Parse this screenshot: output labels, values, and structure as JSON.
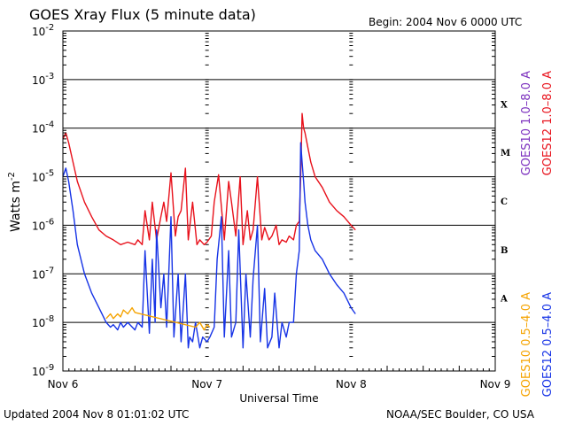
{
  "header": {
    "title": "GOES Xray Flux (5 minute data)",
    "begin": "Begin:  2004 Nov 6 0000 UTC"
  },
  "footer": {
    "updated": "Updated 2004 Nov  8 01:01:02 UTC",
    "credit": "NOAA/SEC Boulder, CO USA"
  },
  "colors": {
    "goes10_long": "#7b2fbe",
    "goes12_long": "#e8111b",
    "goes10_short": "#f5a300",
    "goes12_short": "#1633e6"
  },
  "chart_data": {
    "type": "line",
    "y_scale": "log",
    "ylim": [
      1e-09,
      0.01
    ],
    "xlim_days": [
      0,
      3
    ],
    "grid": true,
    "xlabel": "Universal Time",
    "ylabel": "Watts m",
    "ylabel_sup": "-2",
    "x_ticks": [
      {
        "day": 0,
        "label": "Nov 6"
      },
      {
        "day": 1,
        "label": "Nov 7"
      },
      {
        "day": 2,
        "label": "Nov 8"
      },
      {
        "day": 3,
        "label": "Nov 9"
      }
    ],
    "y_ticks": [
      {
        "exp": -9,
        "base": "10",
        "sup": "-9"
      },
      {
        "exp": -8,
        "base": "10",
        "sup": "-8"
      },
      {
        "exp": -7,
        "base": "10",
        "sup": "-7"
      },
      {
        "exp": -6,
        "base": "10",
        "sup": "-6"
      },
      {
        "exp": -5,
        "base": "10",
        "sup": "-5"
      },
      {
        "exp": -4,
        "base": "10",
        "sup": "-4"
      },
      {
        "exp": -3,
        "base": "10",
        "sup": "-3"
      },
      {
        "exp": -2,
        "base": "10",
        "sup": "-2"
      }
    ],
    "flare_classes": [
      {
        "label": "A",
        "exp": -7.5
      },
      {
        "label": "B",
        "exp": -6.5
      },
      {
        "label": "C",
        "exp": -5.5
      },
      {
        "label": "M",
        "exp": -4.5
      },
      {
        "label": "X",
        "exp": -3.5
      }
    ],
    "legend": [
      {
        "label": "GOES10 1.0–8.0 A",
        "color_key": "goes10_long"
      },
      {
        "label": "GOES12 1.0–8.0 A",
        "color_key": "goes12_long"
      },
      {
        "label": "GOES10 0.5–4.0 A",
        "color_key": "goes10_short"
      },
      {
        "label": "GOES12 0.5–4.0 A",
        "color_key": "goes12_short"
      }
    ],
    "series": [
      {
        "name": "GOES12 1.0–8.0 A",
        "color_key": "goes12_long",
        "x": [
          0.0,
          0.02,
          0.04,
          0.07,
          0.1,
          0.15,
          0.2,
          0.25,
          0.3,
          0.35,
          0.4,
          0.45,
          0.5,
          0.52,
          0.55,
          0.57,
          0.6,
          0.62,
          0.65,
          0.68,
          0.7,
          0.72,
          0.75,
          0.78,
          0.8,
          0.82,
          0.85,
          0.87,
          0.9,
          0.93,
          0.95,
          0.98,
          1.0,
          1.03,
          1.05,
          1.08,
          1.12,
          1.15,
          1.17,
          1.2,
          1.23,
          1.25,
          1.28,
          1.3,
          1.32,
          1.35,
          1.38,
          1.4,
          1.43,
          1.45,
          1.48,
          1.5,
          1.52,
          1.55,
          1.57,
          1.6,
          1.62,
          1.64,
          1.65,
          1.66,
          1.67,
          1.68,
          1.7,
          1.72,
          1.75,
          1.8,
          1.85,
          1.9,
          1.95,
          2.0,
          2.03
        ],
        "y": [
          6e-05,
          8e-05,
          5e-05,
          2e-05,
          8e-06,
          3e-06,
          1.5e-06,
          8e-07,
          6e-07,
          5e-07,
          4e-07,
          4.5e-07,
          4e-07,
          5e-07,
          4e-07,
          2e-06,
          5e-07,
          3e-06,
          5e-07,
          1.5e-06,
          3e-06,
          1.2e-06,
          1.2e-05,
          6e-07,
          1.5e-06,
          2e-06,
          1.5e-05,
          5e-07,
          3e-06,
          4e-07,
          5e-07,
          4e-07,
          4.5e-07,
          6e-07,
          3e-06,
          1.1e-05,
          5e-07,
          8e-06,
          3e-06,
          6e-07,
          1e-05,
          4e-07,
          2e-06,
          5e-07,
          8e-07,
          1e-05,
          5e-07,
          9e-07,
          5e-07,
          6e-07,
          1e-06,
          4e-07,
          5e-07,
          4.5e-07,
          6e-07,
          5e-07,
          1e-06,
          1.2e-06,
          1e-05,
          0.0002,
          0.0001,
          8e-05,
          4e-05,
          2e-05,
          1e-05,
          6e-06,
          3e-06,
          2e-06,
          1.5e-06,
          1e-06,
          8e-07
        ]
      },
      {
        "name": "GOES12 0.5–4.0 A",
        "color_key": "goes12_short",
        "x": [
          0.0,
          0.02,
          0.04,
          0.07,
          0.1,
          0.15,
          0.2,
          0.25,
          0.3,
          0.33,
          0.35,
          0.38,
          0.4,
          0.42,
          0.45,
          0.5,
          0.52,
          0.55,
          0.57,
          0.6,
          0.62,
          0.64,
          0.65,
          0.68,
          0.7,
          0.72,
          0.75,
          0.77,
          0.8,
          0.82,
          0.85,
          0.87,
          0.88,
          0.9,
          0.92,
          0.95,
          0.97,
          1.0,
          1.02,
          1.05,
          1.07,
          1.1,
          1.12,
          1.15,
          1.17,
          1.2,
          1.22,
          1.25,
          1.27,
          1.3,
          1.32,
          1.35,
          1.37,
          1.4,
          1.42,
          1.45,
          1.47,
          1.5,
          1.52,
          1.55,
          1.57,
          1.6,
          1.62,
          1.64,
          1.65,
          1.66,
          1.67,
          1.68,
          1.7,
          1.72,
          1.75,
          1.8,
          1.85,
          1.9,
          1.95,
          2.0,
          2.03
        ],
        "y": [
          1e-05,
          1.5e-05,
          8e-06,
          2e-06,
          4e-07,
          1e-07,
          4e-08,
          2e-08,
          1e-08,
          8e-09,
          9e-09,
          7e-09,
          1e-08,
          8e-09,
          1e-08,
          7e-09,
          1e-08,
          8e-09,
          3e-07,
          6e-09,
          2e-07,
          1e-08,
          8e-07,
          2e-08,
          1e-07,
          8e-09,
          1.5e-06,
          5e-09,
          1e-07,
          4e-09,
          1e-07,
          3e-09,
          5e-09,
          4e-09,
          1e-08,
          3e-09,
          5e-09,
          4e-09,
          5e-09,
          8e-09,
          2e-07,
          1.5e-06,
          5e-09,
          3e-07,
          5e-09,
          1e-08,
          8e-07,
          3e-09,
          1e-07,
          5e-09,
          8e-08,
          1e-06,
          4e-09,
          5e-08,
          3e-09,
          5e-09,
          4e-08,
          3e-09,
          1e-08,
          5e-09,
          1e-08,
          1e-08,
          1e-07,
          3e-07,
          5e-05,
          2e-05,
          8e-06,
          3e-06,
          1e-06,
          5e-07,
          3e-07,
          2e-07,
          1e-07,
          6e-08,
          4e-08,
          2e-08,
          1.5e-08
        ]
      },
      {
        "name": "GOES10 0.5–4.0 A",
        "color_key": "goes10_short",
        "x": [
          0.3,
          0.33,
          0.35,
          0.38,
          0.4,
          0.42,
          0.45,
          0.48,
          0.5,
          0.92,
          0.95,
          0.98,
          1.0,
          1.02
        ],
        "y": [
          1.2e-08,
          1.5e-08,
          1.2e-08,
          1.5e-08,
          1.3e-08,
          1.8e-08,
          1.5e-08,
          2e-08,
          1.6e-08,
          8e-09,
          1e-08,
          7e-09,
          9e-09,
          8e-09
        ]
      }
    ]
  }
}
